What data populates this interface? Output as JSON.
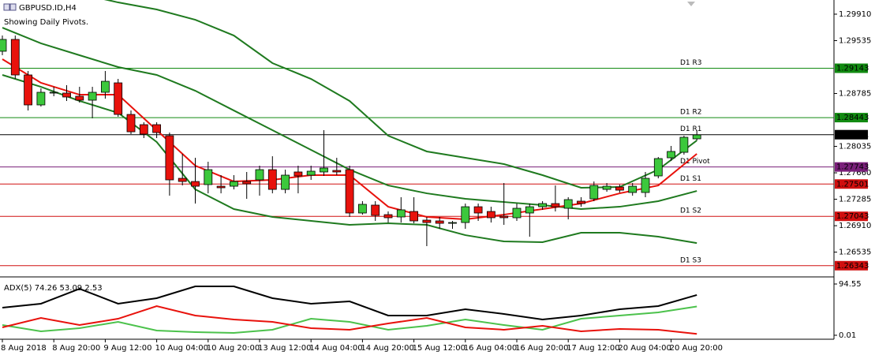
{
  "header": {
    "symbol": "GBPUSD.ID,H4",
    "note": "Showing Daily Pivots."
  },
  "chart_data": [
    {
      "type": "candlestick",
      "categories": [
        "8 Aug 2018",
        null,
        null,
        null,
        "8 Aug 20:00",
        null,
        null,
        null,
        "9 Aug 12:00",
        null,
        null,
        null,
        "10 Aug 04:00",
        null,
        null,
        null,
        "10 Aug 20:00",
        null,
        null,
        null,
        "13 Aug 12:00",
        null,
        null,
        null,
        "14 Aug 04:00",
        null,
        null,
        null,
        "14 Aug 20:00",
        null,
        null,
        null,
        "15 Aug 12:00",
        null,
        null,
        null,
        "16 Aug 04:00",
        null,
        null,
        null,
        "16 Aug 20:00",
        null,
        null,
        null,
        "17 Aug 12:00",
        null,
        null,
        null,
        "20 Aug 04:00",
        null,
        null,
        null,
        "20 Aug 20:00",
        null,
        null
      ],
      "open": [
        1.29384,
        1.29552,
        1.29048,
        1.28623,
        1.28791,
        1.28791,
        1.28746,
        1.2869,
        1.28802,
        1.28936,
        1.28488,
        1.28343,
        1.28343,
        1.28186,
        1.27582,
        1.27537,
        1.27493,
        1.2747,
        1.2747,
        1.27537,
        1.2756,
        1.27705,
        1.27425,
        1.27672,
        1.27627,
        1.27672,
        1.27694,
        1.27705,
        1.2709,
        1.27202,
        1.27067,
        1.27034,
        1.27112,
        1.26989,
        1.26978,
        1.26944,
        1.26955,
        1.27179,
        1.27112,
        1.27045,
        1.27023,
        1.2709,
        1.27179,
        1.27224,
        1.27157,
        1.27258,
        1.27291,
        1.27425,
        1.27459,
        1.27381,
        1.27381,
        1.27616,
        1.27873,
        1.27951,
        1.28142
      ],
      "high": [
        1.29607,
        1.29607,
        1.29104,
        1.28858,
        1.2888,
        1.28903,
        1.2888,
        1.2888,
        1.29104,
        1.28992,
        1.28544,
        1.28377,
        1.28377,
        1.28231,
        1.27929,
        1.27873,
        1.27817,
        1.27627,
        1.27627,
        1.27672,
        1.27761,
        1.27895,
        1.27705,
        1.27761,
        1.27761,
        1.28265,
        1.27873,
        1.27761,
        1.27258,
        1.27258,
        1.27112,
        1.27314,
        1.27314,
        1.27034,
        1.27034,
        1.26978,
        1.27224,
        1.27224,
        1.27179,
        1.27515,
        1.27224,
        1.27224,
        1.27258,
        1.27481,
        1.27314,
        1.27314,
        1.27537,
        1.27515,
        1.27493,
        1.27515,
        1.27672,
        1.27884,
        1.28041,
        1.28186,
        1.28265
      ],
      "low": [
        1.29328,
        1.28992,
        1.28544,
        1.286,
        1.28746,
        1.28679,
        1.28656,
        1.28433,
        1.28712,
        1.28455,
        1.28209,
        1.28153,
        1.28153,
        1.27336,
        1.27481,
        1.27224,
        1.27369,
        1.27369,
        1.27425,
        1.27291,
        1.27336,
        1.27369,
        1.27369,
        1.27369,
        1.2756,
        1.27616,
        1.27627,
        1.27034,
        1.27067,
        1.26978,
        1.26955,
        1.26955,
        1.26944,
        1.2662,
        1.26866,
        1.26866,
        1.26866,
        1.26978,
        1.26955,
        1.26922,
        1.26978,
        1.26754,
        1.27135,
        1.27112,
        1.27,
        1.27179,
        1.27258,
        1.27392,
        1.27381,
        1.27336,
        1.27314,
        1.27582,
        1.27828,
        1.27918,
        1.28119
      ],
      "close": [
        1.29552,
        1.29048,
        1.28623,
        1.28802,
        1.28802,
        1.28735,
        1.2869,
        1.28802,
        1.28958,
        1.28488,
        1.28242,
        1.28209,
        1.28231,
        1.2756,
        1.27537,
        1.2747,
        1.27705,
        1.27448,
        1.27537,
        1.27504,
        1.27705,
        1.27425,
        1.27627,
        1.27616,
        1.27683,
        1.27728,
        1.27672,
        1.2709,
        1.27213,
        1.27056,
        1.27023,
        1.27135,
        1.26978,
        1.26955,
        1.26944,
        1.26955,
        1.27179,
        1.2709,
        1.27023,
        1.27023,
        1.27157,
        1.27179,
        1.27224,
        1.27179,
        1.2728,
        1.27224,
        1.27481,
        1.2747,
        1.27414,
        1.2747,
        1.27582,
        1.27862,
        1.27963,
        1.28164,
        1.28198
      ],
      "up_color": "#3cc83c",
      "down_color": "#e8120c",
      "overlays": [
        {
          "color": "#1f7a1f",
          "x": [
            0,
            3,
            6,
            9,
            12,
            15,
            18,
            21,
            24,
            27,
            30,
            33,
            36,
            39,
            42,
            45,
            48,
            51,
            54
          ],
          "values": [
            1.30335,
            1.30223,
            1.30201,
            1.30077,
            1.29977,
            1.29831,
            1.29607,
            1.29216,
            1.28992,
            1.28679,
            1.28186,
            1.27963,
            1.27873,
            1.27784,
            1.27627,
            1.27448,
            1.27459,
            1.27705,
            1.28119
          ]
        },
        {
          "color": "#1f7a1f",
          "x": [
            0,
            3,
            6,
            9,
            12,
            15,
            18,
            21,
            24,
            27,
            30,
            33,
            36,
            39,
            42,
            45,
            48,
            51,
            54
          ],
          "values": [
            1.29719,
            1.29496,
            1.29328,
            1.2916,
            1.29048,
            1.28824,
            1.28544,
            1.28265,
            1.27985,
            1.27705,
            1.27481,
            1.27369,
            1.27291,
            1.27246,
            1.27202,
            1.27146,
            1.27179,
            1.27258,
            1.27403
          ]
        },
        {
          "color": "#1f7a1f",
          "x": [
            0,
            3,
            6,
            9,
            12,
            15,
            18,
            21,
            24,
            27,
            30,
            33,
            36,
            39,
            42,
            45,
            48,
            51,
            54
          ],
          "values": [
            1.29048,
            1.2888,
            1.28679,
            1.28511,
            1.28097,
            1.27425,
            1.27146,
            1.27034,
            1.26978,
            1.26922,
            1.26944,
            1.26922,
            1.26776,
            1.26687,
            1.26676,
            1.2681,
            1.2681,
            1.26754,
            1.26664
          ]
        },
        {
          "color": "#e8120c",
          "x": [
            0,
            3,
            6,
            9,
            12,
            15,
            18,
            21,
            24,
            27,
            30,
            33,
            36,
            39,
            42,
            45,
            48,
            51,
            54
          ],
          "values": [
            1.29272,
            1.28936,
            1.28768,
            1.28768,
            1.28265,
            1.27761,
            1.27537,
            1.2756,
            1.27627,
            1.27627,
            1.27179,
            1.27034,
            1.27,
            1.27067,
            1.27146,
            1.27224,
            1.27369,
            1.27481,
            1.27929
          ]
        }
      ],
      "levels": [
        {
          "name": "D1 R3",
          "value": 1.29143,
          "color": "#118a11"
        },
        {
          "name": "D1 R2",
          "value": 1.28443,
          "color": "#118a11"
        },
        {
          "name": "D1 R1",
          "value": 1.28201,
          "color": "#000000"
        },
        {
          "name": "D1 Pivot",
          "value": 1.27743,
          "color": "#7a1f7a"
        },
        {
          "name": "D1 S1",
          "value": 1.27501,
          "color": "#d01010"
        },
        {
          "name": "D1 S2",
          "value": 1.27043,
          "color": "#d01010"
        },
        {
          "name": "D1 S3",
          "value": 1.26343,
          "color": "#d01010"
        }
      ],
      "ylim": [
        1.26195,
        1.30111
      ],
      "yticks": [
        {
          "value": 1.2991,
          "label": "1.29910"
        },
        1.29535,
        1.28785,
        1.28035,
        {
          "value": 1.2766,
          "label": "1.27660"
        },
        1.27285,
        {
          "value": 1.2691,
          "label": "1.26910"
        },
        1.26535
      ]
    },
    {
      "type": "line",
      "title": "ADX(5) 74.26 53.09 2.53",
      "series": [
        {
          "color": "#000000",
          "x": [
            0,
            3,
            6,
            9,
            12,
            15,
            18,
            21,
            24,
            27,
            30,
            33,
            36,
            39,
            42,
            45,
            48,
            51,
            54
          ],
          "values": [
            50.9,
            58.2,
            85.8,
            58.2,
            68.4,
            90.2,
            90.2,
            68.4,
            58.2,
            62.5,
            36.4,
            36.4,
            48.0,
            39.3,
            29.1,
            36.4,
            48.0,
            53.8,
            74.26
          ]
        },
        {
          "color": "#4cc24c",
          "x": [
            0,
            3,
            6,
            9,
            12,
            15,
            18,
            21,
            24,
            27,
            30,
            33,
            36,
            39,
            42,
            45,
            48,
            51,
            54
          ],
          "values": [
            18.9,
            7.3,
            13.1,
            24.7,
            8.7,
            5.8,
            4.4,
            10.2,
            30.5,
            24.7,
            10.2,
            17.5,
            29.1,
            18.9,
            10.2,
            30.5,
            36.4,
            42.2,
            53.09
          ]
        },
        {
          "color": "#e8120c",
          "x": [
            0,
            3,
            6,
            9,
            12,
            15,
            18,
            21,
            24,
            27,
            30,
            33,
            36,
            39,
            42,
            45,
            48,
            51,
            54
          ],
          "values": [
            14.5,
            32.0,
            18.9,
            30.5,
            53.8,
            36.4,
            29.1,
            24.7,
            13.1,
            10.2,
            21.8,
            32.0,
            14.5,
            10.2,
            17.5,
            7.3,
            11.6,
            10.2,
            2.53
          ]
        }
      ],
      "ylim": [
        -7.3,
        106.2
      ],
      "yticks": [
        94.55,
        0.01
      ]
    }
  ]
}
